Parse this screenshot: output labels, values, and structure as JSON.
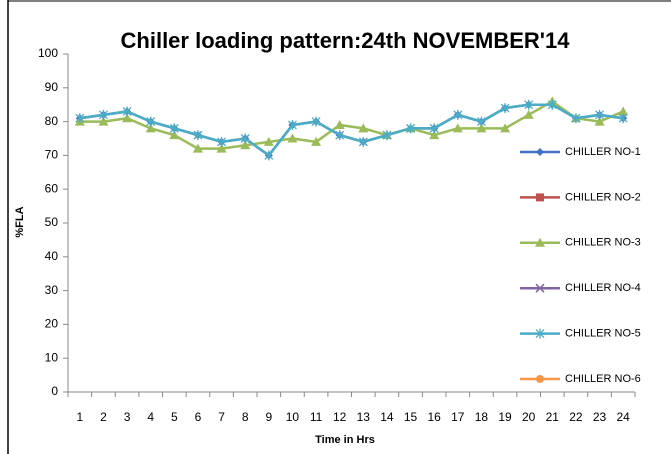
{
  "chart_data": {
    "type": "line",
    "title": "Chiller loading pattern:24th NOVEMBER'14",
    "x_label": "Time in Hrs",
    "y_label": "%FLA",
    "categories": [
      "1",
      "2",
      "3",
      "4",
      "5",
      "6",
      "7",
      "8",
      "9",
      "10",
      "11",
      "12",
      "13",
      "14",
      "15",
      "16",
      "17",
      "18",
      "19",
      "20",
      "21",
      "22",
      "23",
      "24"
    ],
    "ylim": [
      0,
      100
    ],
    "yticks": [
      0,
      10,
      20,
      30,
      40,
      50,
      60,
      70,
      80,
      90,
      100
    ],
    "grid": false,
    "legend": "right",
    "series": [
      {
        "name": "CHILLER NO-1",
        "color": "#4472c4",
        "marker": "diamond",
        "values": [
          81,
          82,
          83,
          80,
          78,
          76,
          74,
          75,
          70,
          79,
          80,
          76,
          74,
          76,
          78,
          78,
          82,
          80,
          84,
          85,
          85,
          81,
          82,
          81
        ]
      },
      {
        "name": "CHILLER NO-2",
        "color": "#c0504d",
        "marker": "square",
        "values": [
          null,
          null,
          null,
          null,
          null,
          null,
          null,
          null,
          null,
          null,
          null,
          null,
          null,
          null,
          null,
          null,
          null,
          null,
          null,
          null,
          null,
          null,
          null,
          null
        ]
      },
      {
        "name": "CHILLER NO-3",
        "color": "#9bbb59",
        "marker": "triangle",
        "values": [
          80,
          80,
          81,
          78,
          76,
          72,
          72,
          73,
          74,
          75,
          74,
          79,
          78,
          76,
          78,
          76,
          78,
          78,
          78,
          82,
          86,
          81,
          80,
          83
        ]
      },
      {
        "name": "CHILLER NO-4",
        "color": "#8064a2",
        "marker": "x",
        "values": [
          null,
          null,
          null,
          null,
          null,
          null,
          null,
          null,
          null,
          null,
          null,
          null,
          null,
          null,
          null,
          null,
          null,
          null,
          null,
          null,
          null,
          null,
          null,
          null
        ]
      },
      {
        "name": "CHILLER NO-5",
        "color": "#4bacc6",
        "marker": "star",
        "values": [
          81,
          82,
          83,
          80,
          78,
          76,
          74,
          75,
          70,
          79,
          80,
          76,
          74,
          76,
          78,
          78,
          82,
          80,
          84,
          85,
          85,
          81,
          82,
          81
        ]
      },
      {
        "name": "CHILLER NO-6",
        "color": "#f79646",
        "marker": "circle",
        "values": [
          null,
          null,
          null,
          null,
          null,
          null,
          null,
          null,
          null,
          null,
          null,
          null,
          null,
          null,
          null,
          null,
          null,
          null,
          null,
          null,
          null,
          null,
          null,
          null
        ]
      }
    ]
  }
}
